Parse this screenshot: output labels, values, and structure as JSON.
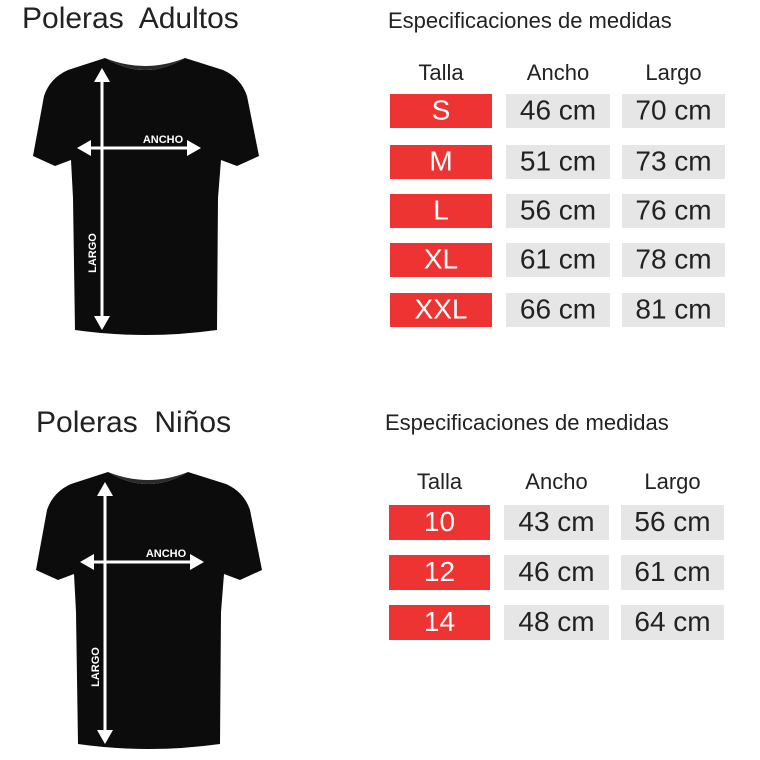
{
  "sections": [
    {
      "title": "Poleras  Adultos",
      "shirt": {
        "width_label": "ANCHO",
        "length_label": "LARGO"
      },
      "table": {
        "title": "Especificaciones de medidas",
        "header": [
          "Talla",
          "Ancho",
          "Largo"
        ],
        "rows": [
          [
            "S",
            "46 cm",
            "70 cm"
          ],
          [
            "M",
            "51 cm",
            "73 cm"
          ],
          [
            "L",
            "56 cm",
            "76 cm"
          ],
          [
            "XL",
            "61 cm",
            "78 cm"
          ],
          [
            "XXL",
            "66 cm",
            "81 cm"
          ]
        ]
      }
    },
    {
      "title": "Poleras  Niños",
      "shirt": {
        "width_label": "ANCHO",
        "length_label": "LARGO"
      },
      "table": {
        "title": "Especificaciones de medidas",
        "header": [
          "Talla",
          "Ancho",
          "Largo"
        ],
        "rows": [
          [
            "10",
            "43 cm",
            "56 cm"
          ],
          [
            "12",
            "46 cm",
            "61 cm"
          ],
          [
            "14",
            "48 cm",
            "64 cm"
          ]
        ]
      }
    }
  ]
}
